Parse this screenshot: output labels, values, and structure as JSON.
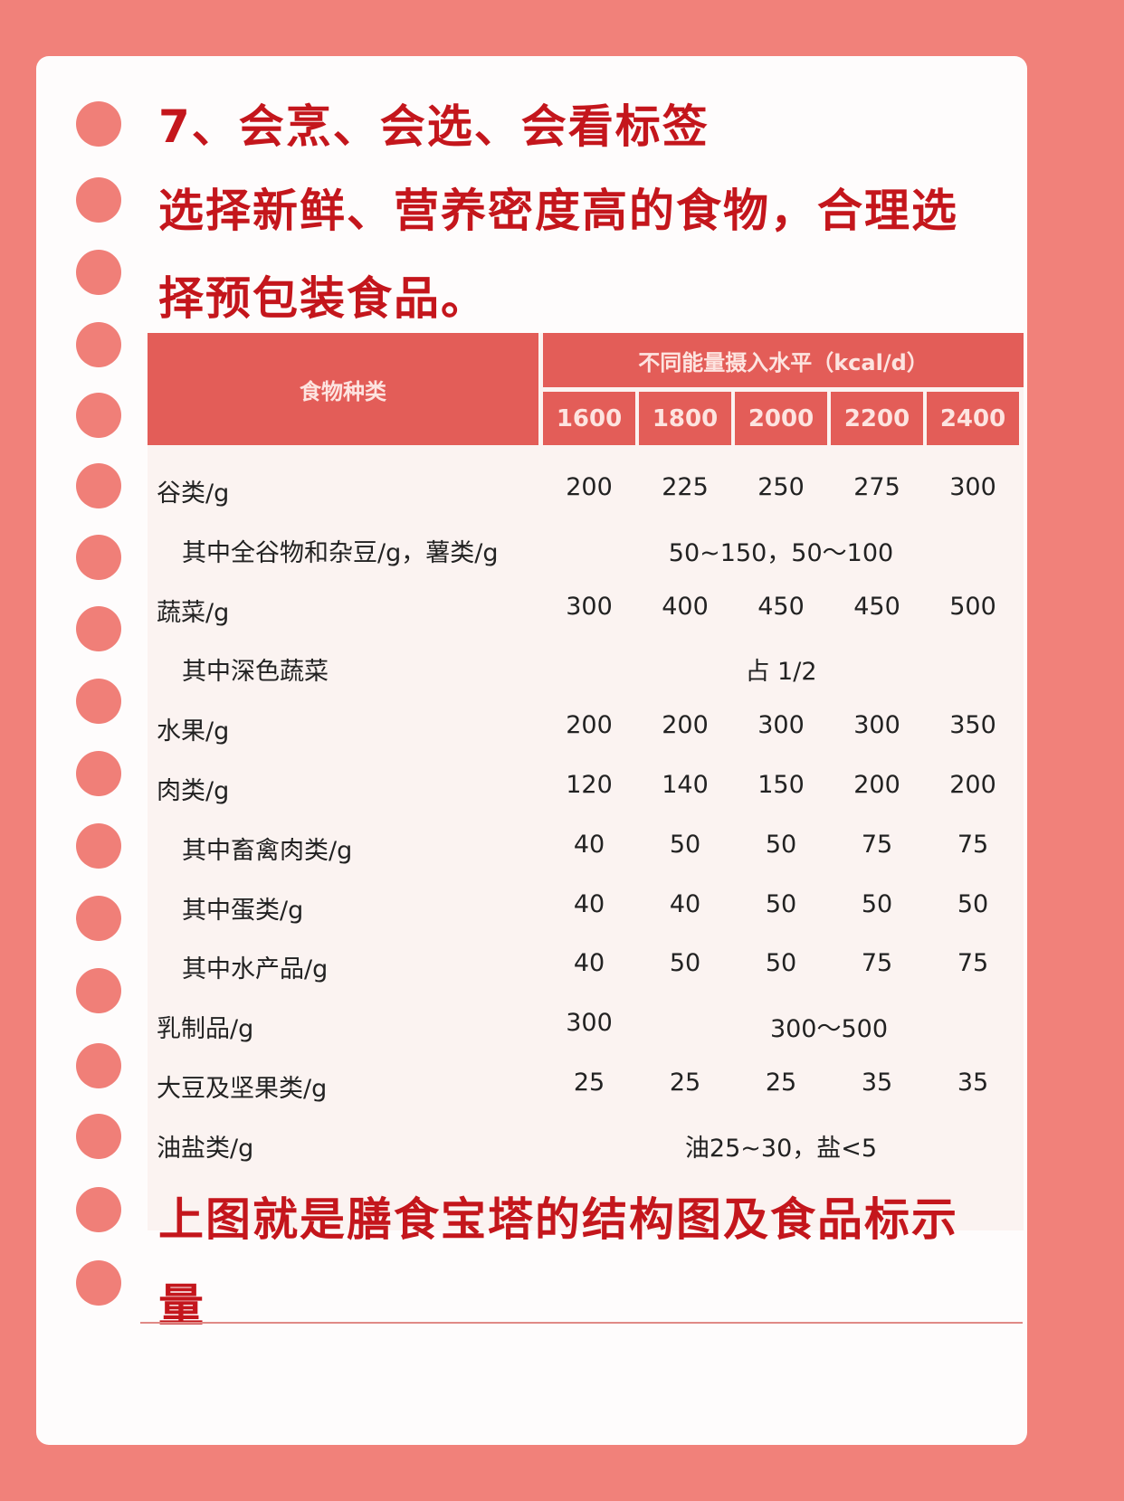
{
  "title": "7、会烹、会选、会看标签",
  "subtitle_lines": [
    "选择新鲜、营养密度高的食物，合理选",
    "择预包装食品。"
  ],
  "footer_lines": [
    "上图就是膳食宝塔的结构图及食品标示",
    "量"
  ],
  "colors": {
    "background": "#f1817a",
    "heading": "#c4161c",
    "table_header": "#e35d58"
  },
  "table": {
    "header_food": "食物种类",
    "header_energy": "不同能量摄入水平（kcal/d）",
    "levels": [
      "1600",
      "1800",
      "2000",
      "2200",
      "2400"
    ],
    "rows": [
      {
        "label": "谷类/g",
        "indent": false,
        "cells": [
          {
            "text": "200",
            "from": 0,
            "to": 0
          },
          {
            "text": "225",
            "from": 1,
            "to": 1
          },
          {
            "text": "250",
            "from": 2,
            "to": 2
          },
          {
            "text": "275",
            "from": 3,
            "to": 3
          },
          {
            "text": "300",
            "from": 4,
            "to": 4
          }
        ]
      },
      {
        "label": "其中全谷物和杂豆/g，薯类/g",
        "indent": true,
        "cells": [
          {
            "text": "50~150，50～100",
            "from": 0,
            "to": 4
          }
        ]
      },
      {
        "label": "蔬菜/g",
        "indent": false,
        "cells": [
          {
            "text": "300",
            "from": 0,
            "to": 0
          },
          {
            "text": "400",
            "from": 1,
            "to": 1
          },
          {
            "text": "450",
            "from": 2,
            "to": 2
          },
          {
            "text": "450",
            "from": 3,
            "to": 3
          },
          {
            "text": "500",
            "from": 4,
            "to": 4
          }
        ]
      },
      {
        "label": "其中深色蔬菜",
        "indent": true,
        "cells": [
          {
            "text": "占 1/2",
            "from": 0,
            "to": 4
          }
        ]
      },
      {
        "label": "水果/g",
        "indent": false,
        "cells": [
          {
            "text": "200",
            "from": 0,
            "to": 0
          },
          {
            "text": "200",
            "from": 1,
            "to": 1
          },
          {
            "text": "300",
            "from": 2,
            "to": 2
          },
          {
            "text": "300",
            "from": 3,
            "to": 3
          },
          {
            "text": "350",
            "from": 4,
            "to": 4
          }
        ]
      },
      {
        "label": "肉类/g",
        "indent": false,
        "cells": [
          {
            "text": "120",
            "from": 0,
            "to": 0
          },
          {
            "text": "140",
            "from": 1,
            "to": 1
          },
          {
            "text": "150",
            "from": 2,
            "to": 2
          },
          {
            "text": "200",
            "from": 3,
            "to": 3
          },
          {
            "text": "200",
            "from": 4,
            "to": 4
          }
        ]
      },
      {
        "label": "其中畜禽肉类/g",
        "indent": true,
        "cells": [
          {
            "text": "40",
            "from": 0,
            "to": 0
          },
          {
            "text": "50",
            "from": 1,
            "to": 1
          },
          {
            "text": "50",
            "from": 2,
            "to": 2
          },
          {
            "text": "75",
            "from": 3,
            "to": 3
          },
          {
            "text": "75",
            "from": 4,
            "to": 4
          }
        ]
      },
      {
        "label": "其中蛋类/g",
        "indent": true,
        "cells": [
          {
            "text": "40",
            "from": 0,
            "to": 0
          },
          {
            "text": "40",
            "from": 1,
            "to": 1
          },
          {
            "text": "50",
            "from": 2,
            "to": 2
          },
          {
            "text": "50",
            "from": 3,
            "to": 3
          },
          {
            "text": "50",
            "from": 4,
            "to": 4
          }
        ]
      },
      {
        "label": "其中水产品/g",
        "indent": true,
        "cells": [
          {
            "text": "40",
            "from": 0,
            "to": 0
          },
          {
            "text": "50",
            "from": 1,
            "to": 1
          },
          {
            "text": "50",
            "from": 2,
            "to": 2
          },
          {
            "text": "75",
            "from": 3,
            "to": 3
          },
          {
            "text": "75",
            "from": 4,
            "to": 4
          }
        ]
      },
      {
        "label": "乳制品/g",
        "indent": false,
        "cells": [
          {
            "text": "300",
            "from": 0,
            "to": 0
          },
          {
            "text": "300～500",
            "from": 1,
            "to": 4
          }
        ]
      },
      {
        "label": "大豆及坚果类/g",
        "indent": false,
        "cells": [
          {
            "text": "25",
            "from": 0,
            "to": 0
          },
          {
            "text": "25",
            "from": 1,
            "to": 1
          },
          {
            "text": "25",
            "from": 2,
            "to": 2
          },
          {
            "text": "35",
            "from": 3,
            "to": 3
          },
          {
            "text": "35",
            "from": 4,
            "to": 4
          }
        ]
      },
      {
        "label": "油盐类/g",
        "indent": false,
        "cells": [
          {
            "text": "油25~30，盐<5",
            "from": 0,
            "to": 4
          }
        ]
      }
    ]
  }
}
